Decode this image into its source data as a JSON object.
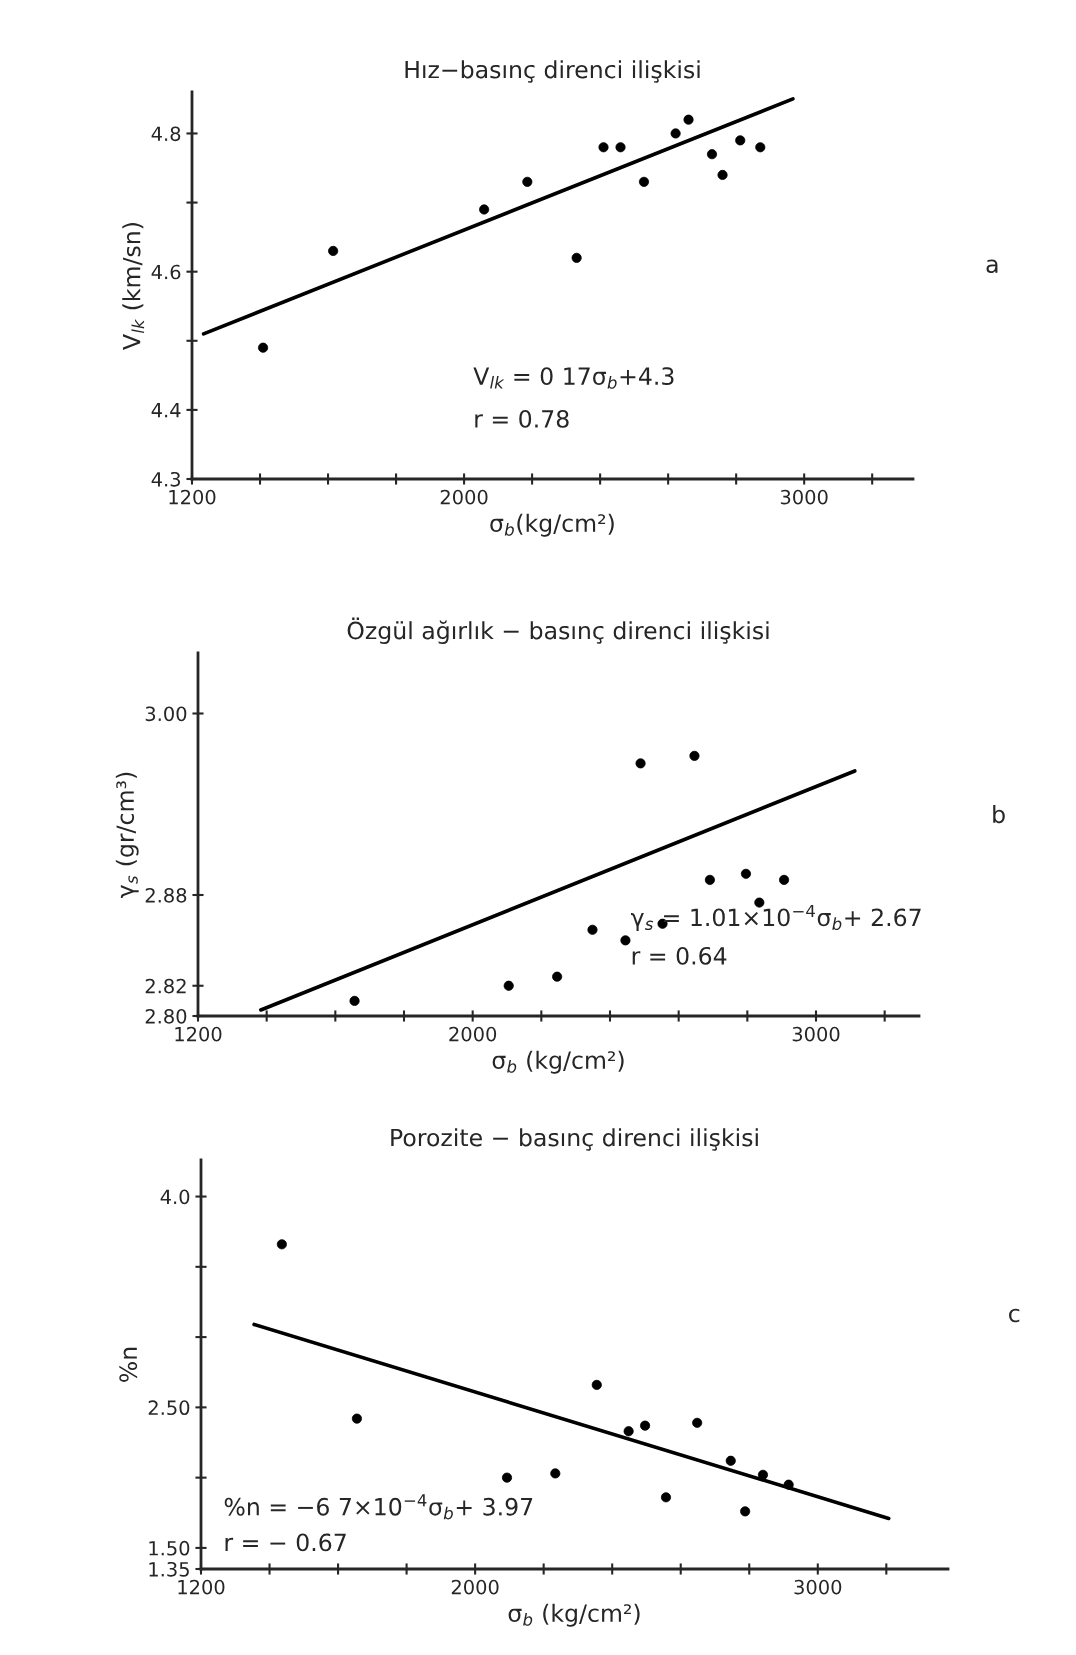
{
  "chart_data": [
    {
      "type": "scatter",
      "title": "Hız−basınç direnci ilişkisi",
      "xlabel": "σ$_{b}$(kg/cm²)",
      "ylabel": "V$_{lk}$ (km/sn)",
      "xlim": [
        1200,
        3320
      ],
      "ylim": [
        4.3,
        4.86
      ],
      "xticks": [
        1200,
        {
          "value": 1400,
          "label": null
        },
        {
          "value": 1600,
          "label": null
        },
        {
          "value": 1800,
          "label": null
        },
        2000,
        {
          "value": 2200,
          "label": null
        },
        {
          "value": 2400,
          "label": null
        },
        {
          "value": 2600,
          "label": null
        },
        {
          "value": 2800,
          "label": null
        },
        3000,
        {
          "value": 3200,
          "label": null
        }
      ],
      "yticks": [
        4.3,
        4.4,
        {
          "value": 4.5,
          "label": null
        },
        4.6,
        {
          "value": 4.7,
          "label": null
        },
        4.8
      ],
      "series": [
        {
          "color": "#000000",
          "marker": "circle",
          "x": [
            1409,
            1615,
            2059,
            2186,
            2331,
            2410,
            2460,
            2529,
            2622,
            2660,
            2729,
            2760,
            2812,
            2871
          ],
          "values": [
            4.49,
            4.63,
            4.69,
            4.73,
            4.62,
            4.78,
            4.78,
            4.73,
            4.8,
            4.82,
            4.77,
            4.74,
            4.79,
            4.78
          ]
        },
        {
          "type": "line",
          "color": "#000000",
          "x": [
            1234,
            2967
          ],
          "values": [
            4.51,
            4.85
          ]
        }
      ],
      "annotations": [
        "V$_{lk}$ = 0 17σ$_{b}$+4.3",
        "r = 0.78",
        "a"
      ]
    },
    {
      "type": "scatter",
      "title": "Özgül ağırlık − basınç direnci ilişkisi",
      "xlabel": "σ$_{b}$ (kg/cm²)",
      "ylabel": "γ$_{s}$ (gr/cm³)",
      "xlim": [
        1200,
        3300
      ],
      "ylim": [
        2.8,
        3.04
      ],
      "xticks": [
        1200,
        {
          "value": 1400,
          "label": null
        },
        {
          "value": 1600,
          "label": null
        },
        {
          "value": 1800,
          "label": null
        },
        2000,
        {
          "value": 2200,
          "label": null
        },
        {
          "value": 2400,
          "label": null
        },
        {
          "value": 2600,
          "label": null
        },
        {
          "value": 2800,
          "label": null
        },
        3000,
        {
          "value": 3200,
          "label": null
        }
      ],
      "yticks": [
        {
          "value": 2.8,
          "label": "2.80"
        },
        2.82,
        2.88,
        {
          "value": 3.0,
          "label": "3.00"
        }
      ],
      "series": [
        {
          "color": "#000000",
          "marker": "circle",
          "x": [
            1656,
            2105,
            2246,
            2349,
            2445,
            2489,
            2553,
            2646,
            2691,
            2796,
            2835,
            2907
          ],
          "values": [
            2.81,
            2.82,
            2.826,
            2.857,
            2.85,
            2.967,
            2.861,
            2.972,
            2.89,
            2.894,
            2.875,
            2.89
          ]
        },
        {
          "type": "line",
          "color": "#000000",
          "x": [
            1383,
            3113
          ],
          "values": [
            2.804,
            2.962
          ]
        }
      ],
      "annotations": [
        "γ$_{s}$ = 1.01×10$^{−4}$σ$_{b}$+ 2.67",
        "r = 0.64",
        "b"
      ]
    },
    {
      "type": "scatter",
      "title": "Porozite − basınç direnci ilişkisi",
      "xlabel": "σ$_{b}$ (kg/cm²)",
      "ylabel": "%n",
      "xlim": [
        1200,
        3380
      ],
      "ylim": [
        1.35,
        4.26
      ],
      "xticks": [
        1200,
        {
          "value": 1400,
          "label": null
        },
        {
          "value": 1600,
          "label": null
        },
        {
          "value": 1800,
          "label": null
        },
        2000,
        {
          "value": 2200,
          "label": null
        },
        {
          "value": 2400,
          "label": null
        },
        {
          "value": 2600,
          "label": null
        },
        {
          "value": 2800,
          "label": null
        },
        3000,
        {
          "value": 3200,
          "label": null
        }
      ],
      "yticks": [
        1.35,
        {
          "value": 1.5,
          "label": "1.50"
        },
        {
          "value": 2.0,
          "label": null
        },
        {
          "value": 2.5,
          "label": "2.50"
        },
        {
          "value": 3.0,
          "label": null
        },
        {
          "value": 3.5,
          "label": null
        },
        {
          "value": 4.0,
          "label": "4.0"
        }
      ],
      "series": [
        {
          "color": "#000000",
          "marker": "circle",
          "x": [
            1436,
            1655,
            2093,
            2234,
            2355,
            2448,
            2496,
            2557,
            2648,
            2746,
            2788,
            2840,
            2915
          ],
          "values": [
            3.66,
            2.42,
            2.0,
            2.03,
            2.66,
            2.33,
            2.37,
            1.86,
            2.39,
            2.12,
            1.76,
            2.02,
            1.95
          ]
        },
        {
          "type": "line",
          "color": "#000000",
          "x": [
            1355,
            3207
          ],
          "values": [
            3.09,
            1.71
          ]
        }
      ],
      "annotations": [
        "%n = −6 7×10$^{−4}$σ$_{b}$+ 3.97",
        "r = − 0.67",
        "c"
      ]
    }
  ]
}
